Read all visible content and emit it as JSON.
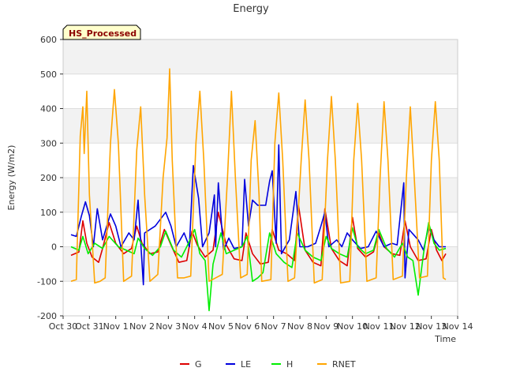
{
  "chart_data": {
    "type": "line",
    "title": "Energy",
    "xlabel": "Time",
    "ylabel": "Energy (W/m2)",
    "badge": "HS_Processed",
    "ylim": [
      -200,
      600
    ],
    "yticks": [
      -200,
      -100,
      0,
      100,
      200,
      300,
      400,
      500,
      600
    ],
    "xlim": [
      0,
      15
    ],
    "xticks": [
      {
        "x": 0,
        "label": "Oct 30"
      },
      {
        "x": 1,
        "label": "Oct 31"
      },
      {
        "x": 2,
        "label": "Nov 1"
      },
      {
        "x": 3,
        "label": "Nov 2"
      },
      {
        "x": 4,
        "label": "Nov 3"
      },
      {
        "x": 5,
        "label": "Nov 4"
      },
      {
        "x": 6,
        "label": "Nov 5"
      },
      {
        "x": 7,
        "label": "Nov 6"
      },
      {
        "x": 8,
        "label": "Nov 7"
      },
      {
        "x": 9,
        "label": "Nov 8"
      },
      {
        "x": 10,
        "label": "Nov 9"
      },
      {
        "x": 11,
        "label": "Nov 10"
      },
      {
        "x": 12,
        "label": "Nov 11"
      },
      {
        "x": 13,
        "label": "Nov 12"
      },
      {
        "x": 14,
        "label": "Nov 13"
      },
      {
        "x": 15,
        "label": "Nov 14"
      }
    ],
    "legend_position": "bottom",
    "grid": true,
    "series": [
      {
        "name": "G",
        "color": "#dd0000",
        "points": [
          [
            0.3,
            -25
          ],
          [
            0.6,
            -15
          ],
          [
            0.75,
            75
          ],
          [
            0.9,
            10
          ],
          [
            1.1,
            -30
          ],
          [
            1.35,
            -45
          ],
          [
            1.5,
            -5
          ],
          [
            1.75,
            70
          ],
          [
            2.0,
            10
          ],
          [
            2.3,
            -20
          ],
          [
            2.6,
            -5
          ],
          [
            2.8,
            60
          ],
          [
            3.0,
            10
          ],
          [
            3.3,
            -20
          ],
          [
            3.6,
            -15
          ],
          [
            3.85,
            50
          ],
          [
            4.1,
            5
          ],
          [
            4.4,
            -45
          ],
          [
            4.7,
            -40
          ],
          [
            4.9,
            45
          ],
          [
            5.1,
            5
          ],
          [
            5.4,
            -30
          ],
          [
            5.7,
            -10
          ],
          [
            5.9,
            100
          ],
          [
            6.2,
            5
          ],
          [
            6.5,
            -35
          ],
          [
            6.8,
            -40
          ],
          [
            6.95,
            40
          ],
          [
            7.2,
            -20
          ],
          [
            7.5,
            -50
          ],
          [
            7.8,
            -45
          ],
          [
            7.95,
            50
          ],
          [
            8.2,
            -10
          ],
          [
            8.5,
            -20
          ],
          [
            8.8,
            -40
          ],
          [
            8.95,
            120
          ],
          [
            9.2,
            -10
          ],
          [
            9.5,
            -45
          ],
          [
            9.8,
            -55
          ],
          [
            9.95,
            110
          ],
          [
            10.2,
            -5
          ],
          [
            10.5,
            -40
          ],
          [
            10.8,
            -55
          ],
          [
            11.0,
            85
          ],
          [
            11.2,
            -5
          ],
          [
            11.5,
            -30
          ],
          [
            11.8,
            -15
          ],
          [
            12.0,
            40
          ],
          [
            12.2,
            0
          ],
          [
            12.5,
            -20
          ],
          [
            12.8,
            -25
          ],
          [
            13.0,
            75
          ],
          [
            13.2,
            0
          ],
          [
            13.5,
            -40
          ],
          [
            13.8,
            -35
          ],
          [
            14.0,
            50
          ],
          [
            14.2,
            -10
          ],
          [
            14.4,
            -40
          ],
          [
            14.55,
            -20
          ]
        ]
      },
      {
        "name": "LE",
        "color": "#0000dd",
        "points": [
          [
            0.3,
            35
          ],
          [
            0.5,
            30
          ],
          [
            0.7,
            90
          ],
          [
            0.85,
            130
          ],
          [
            1.0,
            90
          ],
          [
            1.15,
            0
          ],
          [
            1.3,
            110
          ],
          [
            1.5,
            20
          ],
          [
            1.8,
            95
          ],
          [
            2.0,
            60
          ],
          [
            2.2,
            0
          ],
          [
            2.5,
            40
          ],
          [
            2.7,
            20
          ],
          [
            2.85,
            135
          ],
          [
            3.05,
            -110
          ],
          [
            3.1,
            40
          ],
          [
            3.5,
            60
          ],
          [
            3.9,
            100
          ],
          [
            4.1,
            60
          ],
          [
            4.3,
            0
          ],
          [
            4.6,
            40
          ],
          [
            4.8,
            0
          ],
          [
            4.95,
            235
          ],
          [
            5.15,
            140
          ],
          [
            5.3,
            0
          ],
          [
            5.55,
            40
          ],
          [
            5.75,
            150
          ],
          [
            5.8,
            0
          ],
          [
            5.9,
            185
          ],
          [
            6.1,
            -10
          ],
          [
            6.3,
            25
          ],
          [
            6.5,
            -5
          ],
          [
            6.8,
            0
          ],
          [
            6.9,
            195
          ],
          [
            7.05,
            60
          ],
          [
            7.2,
            135
          ],
          [
            7.4,
            120
          ],
          [
            7.7,
            120
          ],
          [
            7.85,
            190
          ],
          [
            7.95,
            220
          ],
          [
            8.1,
            10
          ],
          [
            8.2,
            295
          ],
          [
            8.3,
            -20
          ],
          [
            8.6,
            20
          ],
          [
            8.85,
            160
          ],
          [
            9.0,
            0
          ],
          [
            9.3,
            0
          ],
          [
            9.6,
            10
          ],
          [
            9.8,
            60
          ],
          [
            9.95,
            100
          ],
          [
            10.1,
            0
          ],
          [
            10.4,
            20
          ],
          [
            10.6,
            0
          ],
          [
            10.8,
            40
          ],
          [
            11.0,
            20
          ],
          [
            11.3,
            -5
          ],
          [
            11.6,
            0
          ],
          [
            11.9,
            45
          ],
          [
            12.2,
            0
          ],
          [
            12.5,
            10
          ],
          [
            12.7,
            5
          ],
          [
            12.95,
            185
          ],
          [
            13.0,
            -90
          ],
          [
            13.15,
            50
          ],
          [
            13.5,
            20
          ],
          [
            13.7,
            -10
          ],
          [
            13.9,
            60
          ],
          [
            14.1,
            20
          ],
          [
            14.3,
            0
          ],
          [
            14.55,
            0
          ]
        ]
      },
      {
        "name": "H",
        "color": "#00ee00",
        "points": [
          [
            0.3,
            0
          ],
          [
            0.6,
            -10
          ],
          [
            0.75,
            30
          ],
          [
            0.95,
            -20
          ],
          [
            1.2,
            10
          ],
          [
            1.5,
            -5
          ],
          [
            1.75,
            30
          ],
          [
            2.1,
            0
          ],
          [
            2.4,
            -10
          ],
          [
            2.7,
            -20
          ],
          [
            2.85,
            25
          ],
          [
            3.1,
            -5
          ],
          [
            3.4,
            -25
          ],
          [
            3.7,
            0
          ],
          [
            3.9,
            45
          ],
          [
            4.2,
            -10
          ],
          [
            4.5,
            -30
          ],
          [
            4.7,
            0
          ],
          [
            5.0,
            50
          ],
          [
            5.2,
            -20
          ],
          [
            5.4,
            -40
          ],
          [
            5.55,
            -185
          ],
          [
            5.7,
            -50
          ],
          [
            6.0,
            40
          ],
          [
            6.2,
            -20
          ],
          [
            6.5,
            -10
          ],
          [
            6.8,
            0
          ],
          [
            7.0,
            30
          ],
          [
            7.2,
            -100
          ],
          [
            7.4,
            -90
          ],
          [
            7.6,
            -75
          ],
          [
            7.85,
            40
          ],
          [
            8.1,
            -20
          ],
          [
            8.4,
            -45
          ],
          [
            8.7,
            -60
          ],
          [
            8.9,
            40
          ],
          [
            9.2,
            -10
          ],
          [
            9.5,
            -30
          ],
          [
            9.8,
            -40
          ],
          [
            10.0,
            30
          ],
          [
            10.2,
            -5
          ],
          [
            10.5,
            -20
          ],
          [
            10.8,
            -30
          ],
          [
            11.0,
            55
          ],
          [
            11.2,
            0
          ],
          [
            11.5,
            -20
          ],
          [
            11.8,
            -10
          ],
          [
            12.0,
            50
          ],
          [
            12.3,
            -5
          ],
          [
            12.6,
            -30
          ],
          [
            12.9,
            10
          ],
          [
            13.1,
            -30
          ],
          [
            13.3,
            -40
          ],
          [
            13.5,
            -140
          ],
          [
            13.7,
            -20
          ],
          [
            13.9,
            70
          ],
          [
            14.1,
            10
          ],
          [
            14.3,
            -10
          ],
          [
            14.55,
            -5
          ]
        ]
      },
      {
        "name": "RNET",
        "color": "#ffa500",
        "points": [
          [
            0.3,
            -100
          ],
          [
            0.5,
            -95
          ],
          [
            0.65,
            320
          ],
          [
            0.75,
            405
          ],
          [
            0.8,
            270
          ],
          [
            0.9,
            450
          ],
          [
            1.0,
            150
          ],
          [
            1.2,
            -105
          ],
          [
            1.4,
            -100
          ],
          [
            1.6,
            -90
          ],
          [
            1.8,
            300
          ],
          [
            1.95,
            455
          ],
          [
            2.1,
            300
          ],
          [
            2.3,
            -100
          ],
          [
            2.6,
            -85
          ],
          [
            2.8,
            280
          ],
          [
            2.95,
            405
          ],
          [
            3.1,
            150
          ],
          [
            3.3,
            -100
          ],
          [
            3.6,
            -80
          ],
          [
            3.8,
            200
          ],
          [
            3.95,
            315
          ],
          [
            4.05,
            515
          ],
          [
            4.15,
            250
          ],
          [
            4.35,
            -90
          ],
          [
            4.6,
            -90
          ],
          [
            4.85,
            -85
          ],
          [
            5.05,
            300
          ],
          [
            5.2,
            450
          ],
          [
            5.35,
            250
          ],
          [
            5.55,
            -100
          ],
          [
            5.8,
            -90
          ],
          [
            6.05,
            -80
          ],
          [
            6.25,
            200
          ],
          [
            6.4,
            450
          ],
          [
            6.55,
            200
          ],
          [
            6.75,
            -90
          ],
          [
            7.0,
            -80
          ],
          [
            7.15,
            250
          ],
          [
            7.3,
            365
          ],
          [
            7.45,
            150
          ],
          [
            7.55,
            -100
          ],
          [
            7.9,
            -95
          ],
          [
            8.05,
            300
          ],
          [
            8.2,
            445
          ],
          [
            8.35,
            250
          ],
          [
            8.55,
            -100
          ],
          [
            8.8,
            -90
          ],
          [
            9.05,
            250
          ],
          [
            9.2,
            425
          ],
          [
            9.35,
            250
          ],
          [
            9.55,
            -105
          ],
          [
            9.85,
            -95
          ],
          [
            10.05,
            250
          ],
          [
            10.2,
            435
          ],
          [
            10.35,
            250
          ],
          [
            10.55,
            -105
          ],
          [
            10.9,
            -100
          ],
          [
            11.05,
            250
          ],
          [
            11.2,
            415
          ],
          [
            11.35,
            250
          ],
          [
            11.55,
            -100
          ],
          [
            11.9,
            -90
          ],
          [
            12.05,
            200
          ],
          [
            12.2,
            420
          ],
          [
            12.35,
            250
          ],
          [
            12.55,
            -95
          ],
          [
            12.9,
            -85
          ],
          [
            13.05,
            200
          ],
          [
            13.2,
            405
          ],
          [
            13.35,
            200
          ],
          [
            13.55,
            -90
          ],
          [
            13.85,
            -85
          ],
          [
            14.0,
            250
          ],
          [
            14.15,
            420
          ],
          [
            14.3,
            250
          ],
          [
            14.45,
            -90
          ],
          [
            14.55,
            -95
          ]
        ]
      }
    ]
  }
}
